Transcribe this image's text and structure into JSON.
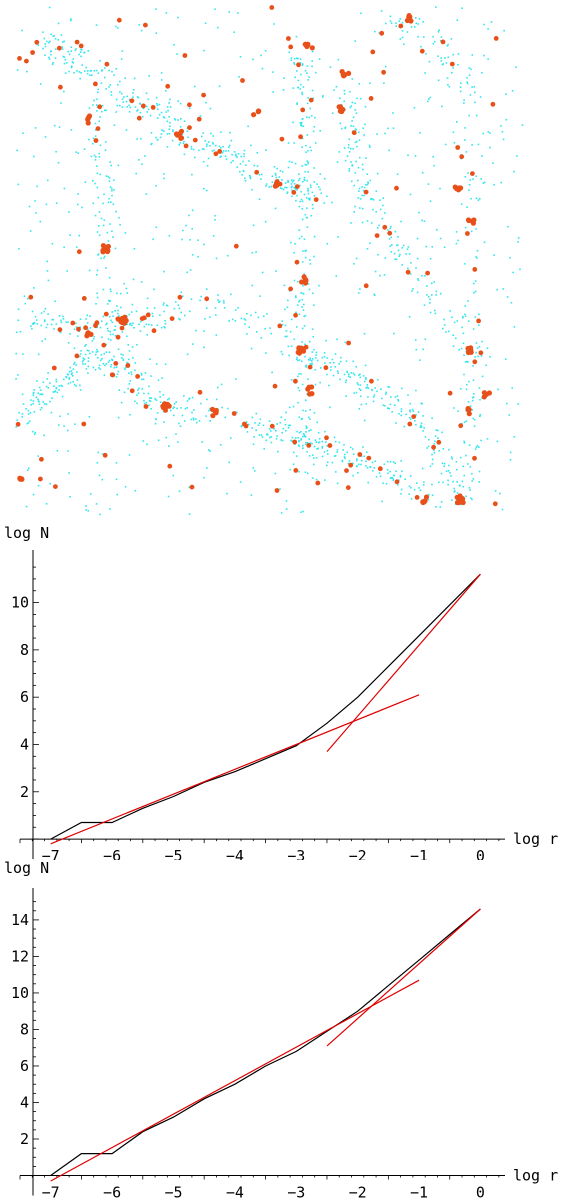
{
  "colors": {
    "points": "#33e6ee",
    "clusters": "#e8501a",
    "curve": "#000000",
    "fit": "#e00000",
    "axis": "#000000"
  },
  "chart_data": [
    {
      "type": "scatter",
      "description_series": [
        {
          "name": "",
          "color": "#33e6ee"
        },
        {
          "name": "",
          "color": "#e8501a"
        }
      ],
      "grid": false
    },
    {
      "type": "line",
      "xlabel": "log r",
      "ylabel": "log N",
      "xlim": [
        -7.5,
        0.4
      ],
      "ylim": [
        -0.25,
        11.8
      ],
      "xticks": [
        -7,
        -6,
        -5,
        -4,
        -3,
        -2,
        -1,
        0
      ],
      "yticks": [
        2,
        4,
        6,
        8,
        10
      ],
      "grid": false,
      "series": [
        {
          "name": "",
          "color": "#000000",
          "x": [
            -7,
            -6.5,
            -6,
            -5.5,
            -5,
            -4.5,
            -4,
            -3.5,
            -3,
            -2.5,
            -2,
            -1.5,
            -1,
            -0.5,
            0
          ],
          "y": [
            0,
            0.7,
            0.7,
            1.3,
            1.8,
            2.4,
            2.85,
            3.4,
            3.95,
            4.9,
            6.0,
            7.3,
            8.6,
            9.9,
            11.2
          ]
        },
        {
          "name": "",
          "color": "#e00000",
          "x": [
            -7,
            -1
          ],
          "y": [
            -0.2,
            6.1
          ]
        },
        {
          "name": "",
          "color": "#e00000",
          "x": [
            -2.5,
            0
          ],
          "y": [
            3.7,
            11.2
          ]
        }
      ]
    },
    {
      "type": "line",
      "xlabel": "log r",
      "ylabel": "log N",
      "xlim": [
        -7.5,
        0.4
      ],
      "ylim": [
        -0.3,
        15.2
      ],
      "xticks": [
        -7,
        -6,
        -5,
        -4,
        -3,
        -2,
        -1,
        0
      ],
      "yticks": [
        2,
        4,
        6,
        8,
        10,
        12,
        14
      ],
      "grid": false,
      "series": [
        {
          "name": "",
          "color": "#000000",
          "x": [
            -7,
            -6.5,
            -6,
            -5.5,
            -5,
            -4.5,
            -4,
            -3.5,
            -3,
            -2.5,
            -2,
            -1.5,
            -1,
            -0.5,
            0
          ],
          "y": [
            0,
            1.2,
            1.2,
            2.4,
            3.2,
            4.2,
            5.0,
            6.0,
            6.8,
            7.9,
            9.0,
            10.4,
            11.8,
            13.2,
            14.6
          ]
        },
        {
          "name": "",
          "color": "#e00000",
          "x": [
            -7,
            -1
          ],
          "y": [
            -0.3,
            10.7
          ]
        },
        {
          "name": "",
          "color": "#e00000",
          "x": [
            -2.5,
            0
          ],
          "y": [
            7.1,
            14.6
          ]
        }
      ]
    }
  ]
}
